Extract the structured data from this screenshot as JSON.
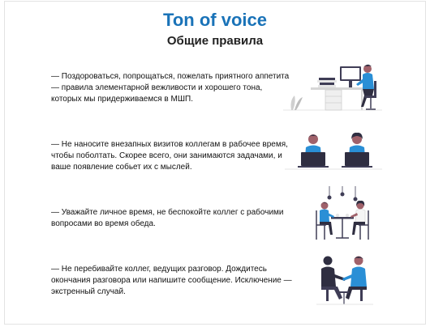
{
  "title": "Ton of voice",
  "subtitle": "Общие правила",
  "rules": [
    {
      "text": "— Поздороваться, попрощаться, пожелать приятного аппетита — правила элементарной вежливости и хорошего тона, которых мы придерживаемся в МШП.",
      "illustration": "person-at-desk-illustration"
    },
    {
      "text": "— Не наносите внезапных визитов коллегам в рабочее время, чтобы поболтать. Скорее всего, они занимаются задачами, и ваше появление собьет их с мыслей.",
      "illustration": "colleagues-working-laptops-illustration"
    },
    {
      "text": "— Уважайте личное время, не беспокойте коллег с рабочими вопросами во время обеда.",
      "illustration": "lunch-table-illustration"
    },
    {
      "text": "— Не перебивайте коллег, ведущих разговор. Дождитесь окончания разговора или напишите сообщение. Исключение — экстренный случай.",
      "illustration": "conversation-illustration"
    }
  ],
  "colors": {
    "accent": "#1a73b8",
    "figure_blue": "#2a8fd6",
    "dark": "#2f2e41",
    "skin": "#a0616a",
    "light_gray": "#e6e6e6"
  }
}
